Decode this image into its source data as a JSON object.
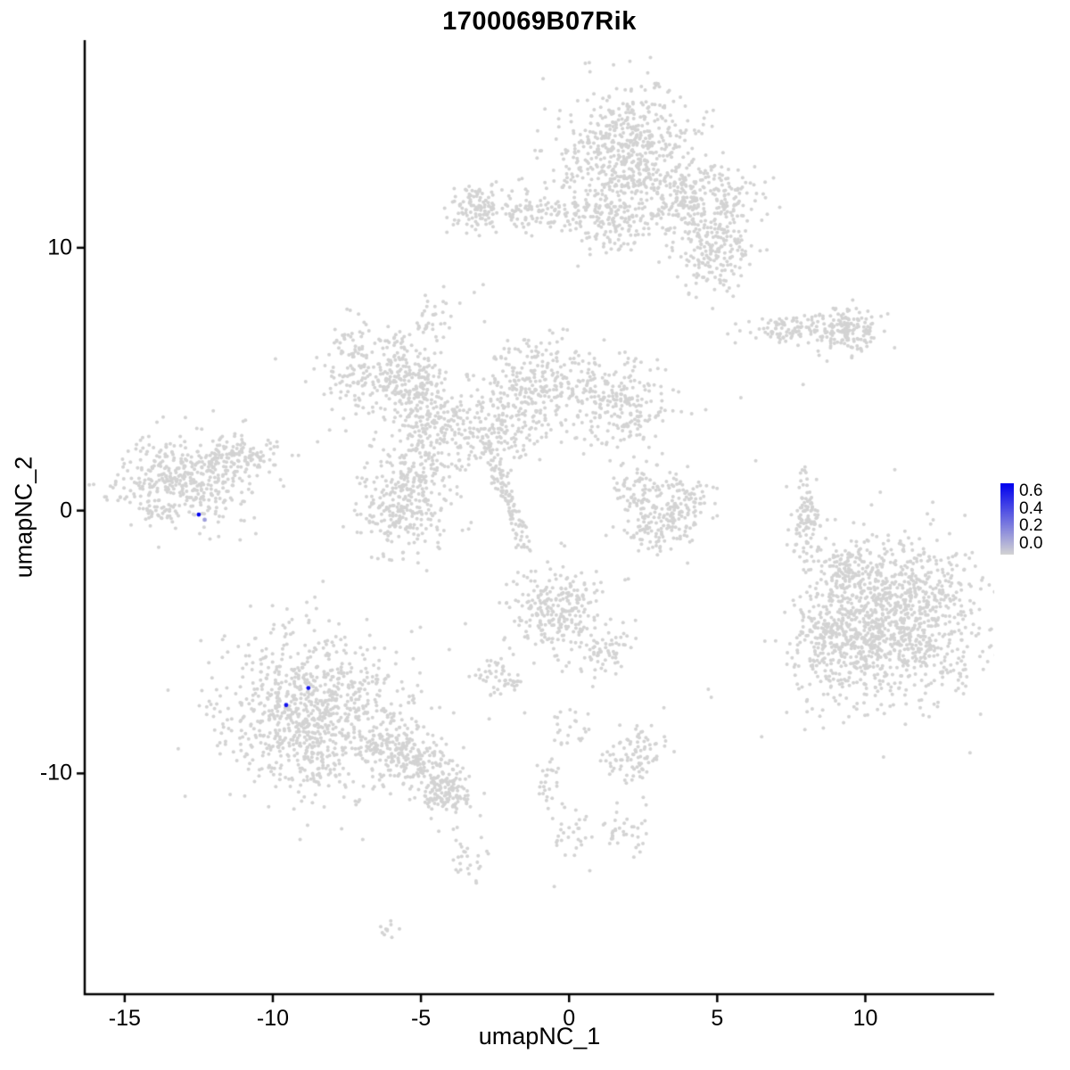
{
  "chart_data": {
    "type": "scatter",
    "title": "1700069B07Rik",
    "xlabel": "umapNC_1",
    "ylabel": "umapNC_2",
    "xlim": [
      -16.35,
      14.35
    ],
    "ylim": [
      -18.4,
      17.9
    ],
    "x_ticks": [
      -15,
      -10,
      -5,
      0,
      5,
      10
    ],
    "y_ticks": [
      -10,
      0,
      10
    ],
    "grid": false,
    "legend_position": "right",
    "point_color": "#D3D3D3",
    "point_radius": 2.0,
    "axis_color": "#000000",
    "legend": {
      "ticks": [
        "0.6",
        "0.4",
        "0.2",
        "0.0"
      ],
      "color_high": "#0000EE",
      "color_low": "#D3D3D3"
    },
    "clusters": [
      {
        "cx": 2.0,
        "cy": 13.6,
        "sx": 1.1,
        "sy": 1.2,
        "n": 600
      },
      {
        "cx": 4.4,
        "cy": 11.8,
        "sx": 1.0,
        "sy": 0.8,
        "n": 280
      },
      {
        "cx": 4.9,
        "cy": 9.8,
        "sx": 0.6,
        "sy": 0.9,
        "n": 170
      },
      {
        "cx": 1.4,
        "cy": 11.0,
        "sx": 0.7,
        "sy": 0.6,
        "n": 130
      },
      {
        "cx": -1.2,
        "cy": 11.4,
        "sx": 1.1,
        "sy": 0.45,
        "n": 140
      },
      {
        "cx": -3.1,
        "cy": 11.5,
        "sx": 0.45,
        "sy": 0.45,
        "n": 90
      },
      {
        "cx": -4.6,
        "cy": 7.3,
        "sx": 0.3,
        "sy": 0.5,
        "n": 35
      },
      {
        "cx": 7.3,
        "cy": 6.9,
        "sx": 0.9,
        "sy": 0.25,
        "n": 90
      },
      {
        "cx": 9.4,
        "cy": 6.8,
        "sx": 0.6,
        "sy": 0.5,
        "n": 160
      },
      {
        "cx": -6.4,
        "cy": 5.3,
        "sx": 1.0,
        "sy": 0.85,
        "n": 280,
        "rot": -0.5
      },
      {
        "cx": -1.0,
        "cy": 5.0,
        "sx": 0.9,
        "sy": 0.8,
        "n": 240
      },
      {
        "cx": 1.7,
        "cy": 4.0,
        "sx": 0.9,
        "sy": 0.8,
        "n": 240
      },
      {
        "cx": -2.4,
        "cy": 3.1,
        "sx": 0.9,
        "sy": 0.8,
        "n": 180
      },
      {
        "cx": -4.5,
        "cy": 2.9,
        "sx": 0.8,
        "sy": 0.8,
        "n": 180
      },
      {
        "cx": -5.5,
        "cy": 0.4,
        "sx": 0.8,
        "sy": 1.1,
        "n": 330
      },
      {
        "cx": -5.1,
        "cy": 4.6,
        "sx": 0.5,
        "sy": 0.5,
        "n": 90
      },
      {
        "x1": -2.8,
        "y1": 2.6,
        "x2": -1.4,
        "y2": -1.5,
        "jitter": 0.15,
        "n": 110
      },
      {
        "cx": -13.0,
        "cy": 1.1,
        "sx": 1.1,
        "sy": 0.85,
        "n": 430
      },
      {
        "cx": -11.2,
        "cy": 2.1,
        "sx": 0.8,
        "sy": 0.4,
        "n": 110
      },
      {
        "cx": 2.4,
        "cy": 0.6,
        "sx": 0.45,
        "sy": 0.5,
        "n": 90
      },
      {
        "cx": 3.0,
        "cy": -0.7,
        "sx": 0.6,
        "sy": 0.4,
        "n": 90
      },
      {
        "cx": 3.9,
        "cy": 0.3,
        "sx": 0.4,
        "sy": 0.55,
        "n": 90
      },
      {
        "cx": 8.0,
        "cy": -0.3,
        "sx": 0.25,
        "sy": 1.0,
        "n": 100
      },
      {
        "cx": 10.9,
        "cy": -4.2,
        "sx": 1.4,
        "sy": 1.5,
        "n": 1100
      },
      {
        "cx": 8.9,
        "cy": -4.6,
        "sx": 0.8,
        "sy": 1.2,
        "n": 240
      },
      {
        "cx": 9.4,
        "cy": -2.3,
        "sx": 0.5,
        "sy": 0.4,
        "n": 70
      },
      {
        "cx": -0.4,
        "cy": -3.7,
        "sx": 0.8,
        "sy": 0.85,
        "n": 260
      },
      {
        "cx": 1.2,
        "cy": -5.3,
        "sx": 0.5,
        "sy": 0.5,
        "n": 60
      },
      {
        "cx": -2.2,
        "cy": -6.4,
        "sx": 0.4,
        "sy": 0.4,
        "n": 50
      },
      {
        "cx": 0.1,
        "cy": -8.2,
        "sx": 0.3,
        "sy": 0.4,
        "n": 20
      },
      {
        "cx": -0.7,
        "cy": -10.4,
        "sx": 0.25,
        "sy": 0.7,
        "n": 30
      },
      {
        "cx": 0.1,
        "cy": -12.2,
        "sx": 0.3,
        "sy": 0.5,
        "n": 25
      },
      {
        "cx": 2.2,
        "cy": -9.4,
        "sx": 0.5,
        "sy": 0.6,
        "n": 90
      },
      {
        "cx": 1.9,
        "cy": -12.3,
        "sx": 0.4,
        "sy": 0.4,
        "n": 35
      },
      {
        "cx": -8.5,
        "cy": -7.8,
        "sx": 1.6,
        "sy": 1.5,
        "n": 950
      },
      {
        "x1": -6.2,
        "y1": -8.6,
        "x2": -4.0,
        "y2": -10.5,
        "jitter": 0.45,
        "n": 240
      },
      {
        "cx": -4.2,
        "cy": -10.8,
        "sx": 0.5,
        "sy": 0.4,
        "n": 90
      },
      {
        "cx": -3.4,
        "cy": -13.3,
        "sx": 0.3,
        "sy": 0.5,
        "n": 28
      },
      {
        "cx": -6.1,
        "cy": -15.9,
        "sx": 0.25,
        "sy": 0.2,
        "n": 10
      }
    ],
    "extra_points": [
      [
        7.9,
        4.8
      ],
      [
        4.7,
        -6.8
      ],
      [
        4.8,
        -7.1
      ],
      [
        4.0,
        -2.0
      ],
      [
        5.0,
        -0.2
      ],
      [
        -2.9,
        8.6
      ],
      [
        -3.2,
        8.3
      ],
      [
        0.3,
        9.3
      ],
      [
        -0.2,
        6.9
      ],
      [
        6.5,
        -8.6
      ],
      [
        3.2,
        -7.5
      ],
      [
        -0.5,
        -14.3
      ],
      [
        0.7,
        -13.7
      ],
      [
        -11.0,
        3.4
      ],
      [
        -12.4,
        3.1
      ],
      [
        5.8,
        4.3
      ],
      [
        6.3,
        1.9
      ],
      [
        2.0,
        -2.6
      ],
      [
        -3.5,
        -4.3
      ],
      [
        -1.5,
        -7.7
      ],
      [
        0.8,
        -6.7
      ],
      [
        2.6,
        -11.2
      ],
      [
        -4.4,
        -12.2
      ],
      [
        -7.6,
        -10.9
      ],
      [
        -9.9,
        -10.5
      ]
    ],
    "highlighted_points": [
      {
        "x": -12.5,
        "y": -0.15,
        "value": 0.6
      },
      {
        "x": -9.55,
        "y": -7.4,
        "value": 0.55
      },
      {
        "x": -8.8,
        "y": -6.75,
        "value": 0.55
      },
      {
        "x": -12.3,
        "y": -0.35,
        "value": 0.15
      }
    ]
  }
}
